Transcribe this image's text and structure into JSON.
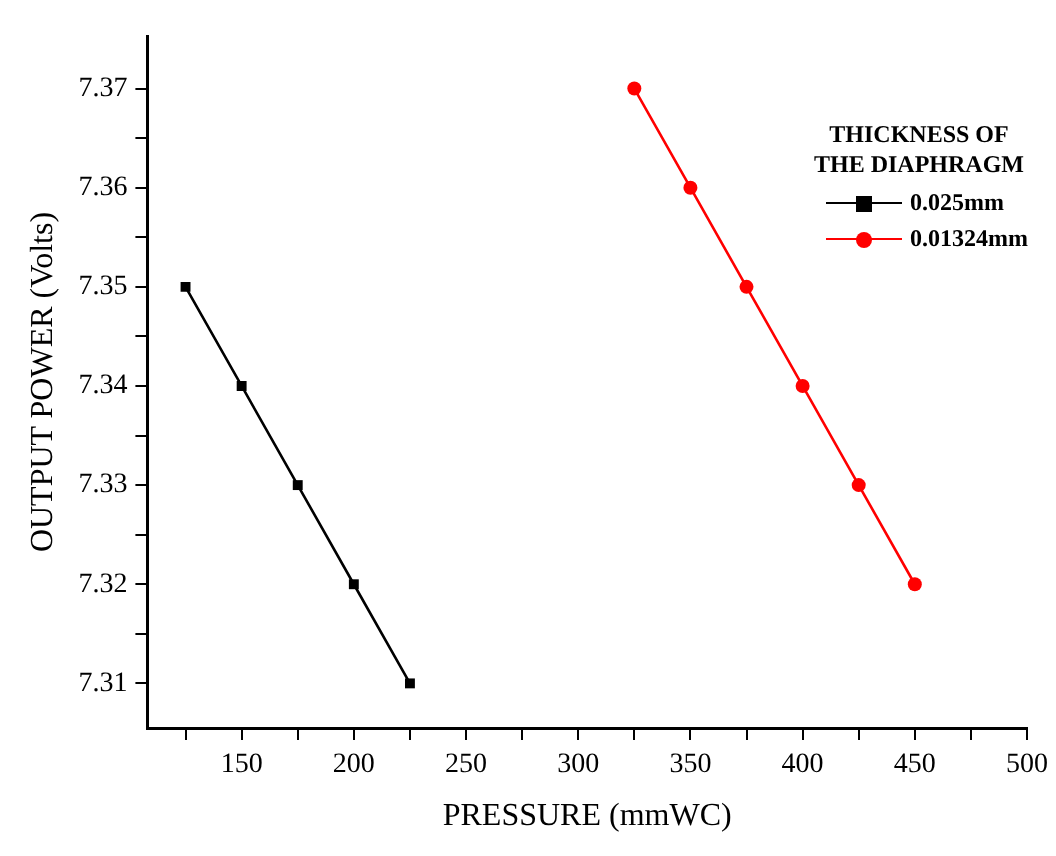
{
  "chart_data": {
    "type": "line",
    "xlabel": "PRESSURE (mmWC)",
    "ylabel": "OUTPUT POWER (Volts)",
    "legend_title": "THICKNESS OF\nTHE DIAPHRAGM",
    "legend": "top right",
    "grid": false,
    "line_style": "solid",
    "xlim": [
      108,
      500
    ],
    "xticks": [
      {
        "value": 125,
        "label": null
      },
      150,
      {
        "value": 175,
        "label": null
      },
      200,
      {
        "value": 225,
        "label": null
      },
      250,
      {
        "value": 275,
        "label": null
      },
      300,
      {
        "value": 325,
        "label": null
      },
      350,
      {
        "value": 375,
        "label": null
      },
      400,
      {
        "value": 425,
        "label": null
      },
      450,
      {
        "value": 475,
        "label": null
      },
      500
    ],
    "ylim": [
      7.3055,
      7.3753
    ],
    "yticks": [
      7.31,
      {
        "value": 7.315,
        "label": null
      },
      7.32,
      {
        "value": 7.325,
        "label": null
      },
      7.33,
      {
        "value": 7.335,
        "label": null
      },
      7.34,
      {
        "value": 7.345,
        "label": null
      },
      7.35,
      {
        "value": 7.355,
        "label": null
      },
      7.36,
      {
        "value": 7.365,
        "label": null
      },
      7.37
    ],
    "series": [
      {
        "name": "0.025mm",
        "color": "#000000",
        "marker": "square",
        "x": [
          125,
          150,
          175,
          200,
          225
        ],
        "values": [
          7.35,
          7.34,
          7.33,
          7.32,
          7.31
        ]
      },
      {
        "name": "0.01324mm",
        "color": "#ff0000",
        "marker": "circle",
        "x": [
          325,
          350,
          375,
          400,
          425,
          450
        ],
        "values": [
          7.37,
          7.36,
          7.35,
          7.34,
          7.33,
          7.32
        ]
      }
    ]
  }
}
